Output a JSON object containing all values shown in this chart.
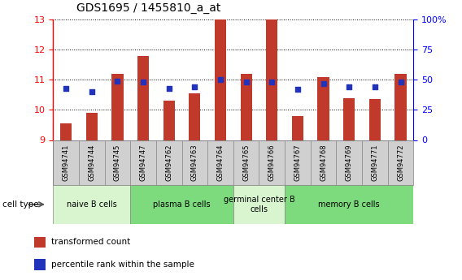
{
  "title": "GDS1695 / 1455810_a_at",
  "samples": [
    "GSM94741",
    "GSM94744",
    "GSM94745",
    "GSM94747",
    "GSM94762",
    "GSM94763",
    "GSM94764",
    "GSM94765",
    "GSM94766",
    "GSM94767",
    "GSM94768",
    "GSM94769",
    "GSM94771",
    "GSM94772"
  ],
  "transformed_count": [
    9.55,
    9.9,
    11.2,
    11.8,
    10.3,
    10.55,
    13.0,
    11.2,
    13.0,
    9.8,
    11.1,
    10.4,
    10.35,
    11.2
  ],
  "percentile_rank": [
    43,
    40,
    49,
    48,
    43,
    44,
    50,
    48,
    48,
    42,
    47,
    44,
    44,
    48
  ],
  "ylim_left": [
    9,
    13
  ],
  "ylim_right": [
    0,
    100
  ],
  "yticks_left": [
    9,
    10,
    11,
    12,
    13
  ],
  "yticks_right": [
    0,
    25,
    50,
    75,
    100
  ],
  "yticklabels_right": [
    "0",
    "25",
    "50",
    "75",
    "100%"
  ],
  "bar_color": "#c0392b",
  "dot_color": "#2233bb",
  "cell_types": [
    {
      "label": "naive B cells",
      "start": 0,
      "end": 3,
      "color": "#d8f5d0"
    },
    {
      "label": "plasma B cells",
      "start": 3,
      "end": 7,
      "color": "#7ddb7d"
    },
    {
      "label": "germinal center B\ncells",
      "start": 7,
      "end": 9,
      "color": "#d8f5d0"
    },
    {
      "label": "memory B cells",
      "start": 9,
      "end": 14,
      "color": "#7ddb7d"
    }
  ],
  "legend_items": [
    {
      "label": "transformed count",
      "color": "#c0392b"
    },
    {
      "label": "percentile rank within the sample",
      "color": "#2233bb"
    }
  ],
  "xlabel": "cell type",
  "background_color": "#ffffff",
  "title_fontsize": 10,
  "tick_fontsize": 8,
  "bar_width": 0.45,
  "sample_box_color": "#d0d0d0"
}
